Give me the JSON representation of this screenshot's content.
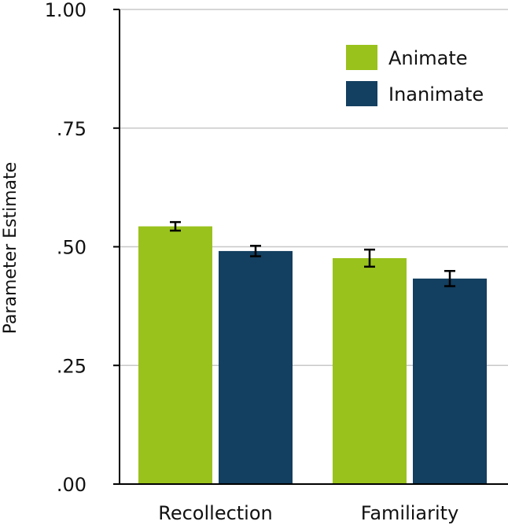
{
  "chart_data": {
    "type": "bar",
    "title": "",
    "xlabel": "",
    "ylabel": "Parameter Estimate",
    "ylim": [
      0,
      1
    ],
    "yticks": [
      0,
      0.25,
      0.5,
      0.75,
      1.0
    ],
    "ytick_labels": [
      ".00",
      ".25",
      ".50",
      ".75",
      "1.00"
    ],
    "grid": true,
    "legend_position": "top-right",
    "categories": [
      "Recollection",
      "Familiarity"
    ],
    "series": [
      {
        "name": "Animate",
        "color": "#99c21c",
        "values": [
          0.543,
          0.476
        ],
        "errors": [
          0.009,
          0.018
        ]
      },
      {
        "name": "Inanimate",
        "color": "#133f60",
        "values": [
          0.491,
          0.433
        ],
        "errors": [
          0.011,
          0.016
        ]
      }
    ]
  }
}
